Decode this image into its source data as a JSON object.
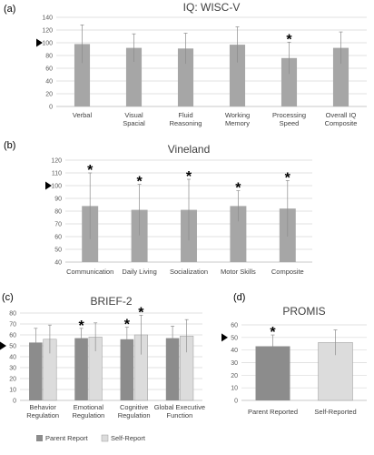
{
  "panels": [
    {
      "id": "a",
      "panel_label": "(a)",
      "reference_marker": "▶",
      "chart_data": {
        "type": "bar",
        "title": "IQ: WISC-V",
        "categories": [
          "Verbal",
          "Visual Spacial",
          "Fluid Reasoning",
          "Working Memory",
          "Processing Speed",
          "Overall IQ Composite"
        ],
        "category_lines": [
          [
            "Verbal"
          ],
          [
            "Visual",
            "Spacial"
          ],
          [
            "Fluid",
            "Reasoning"
          ],
          [
            "Working",
            "Memory"
          ],
          [
            "Processing",
            "Speed"
          ],
          [
            "Overall IQ",
            "Composite"
          ]
        ],
        "series": [
          {
            "values": [
              98,
              92,
              91,
              97,
              76,
              92
            ],
            "errors": [
              30,
              22,
              24,
              28,
              25,
              25
            ],
            "significant": [
              false,
              false,
              false,
              false,
              true,
              false
            ],
            "color": "#a6a6a6"
          }
        ],
        "ylim": [
          0,
          140
        ],
        "ytick_step": 20,
        "reference_value": 100,
        "grid": true,
        "significance_marker": "*"
      }
    },
    {
      "id": "b",
      "panel_label": "(b)",
      "reference_marker": "▶",
      "chart_data": {
        "type": "bar",
        "title": "Vineland",
        "categories": [
          "Communication",
          "Daily Living",
          "Socialization",
          "Motor Skills",
          "Composite"
        ],
        "category_lines": [
          [
            "Communication"
          ],
          [
            "Daily Living"
          ],
          [
            "Socialization"
          ],
          [
            "Motor Skills"
          ],
          [
            "Composite"
          ]
        ],
        "series": [
          {
            "values": [
              84,
              81,
              81,
              84,
              82
            ],
            "errors": [
              26,
              20,
              24,
              12,
              22
            ],
            "significant": [
              true,
              true,
              true,
              true,
              true
            ],
            "color": "#a6a6a6"
          }
        ],
        "ylim": [
          40,
          120
        ],
        "ytick_step": 10,
        "reference_value": 100,
        "grid": true,
        "significance_marker": "*"
      }
    },
    {
      "id": "c",
      "panel_label": "(c)",
      "reference_marker": "▶",
      "chart_data": {
        "type": "bar",
        "title": "BRIEF-2",
        "categories": [
          "Behavior Regulation",
          "Emotional Regulation",
          "Cognitive Regulation",
          "Global Executive Function"
        ],
        "category_lines": [
          [
            "Behavior",
            "Regulation"
          ],
          [
            "Emotional",
            "Regulation"
          ],
          [
            "Cognitive",
            "Regulation"
          ],
          [
            "Global Executive",
            "Function"
          ]
        ],
        "series": [
          {
            "name": "Parent Report",
            "values": [
              53,
              57,
              56,
              57
            ],
            "errors": [
              13,
              9,
              11,
              11
            ],
            "significant": [
              false,
              true,
              true,
              false
            ],
            "color": "#8c8c8c"
          },
          {
            "name": "Self-Report",
            "values": [
              56,
              58,
              60,
              59
            ],
            "errors": [
              13,
              13,
              18,
              15
            ],
            "significant": [
              false,
              false,
              true,
              false
            ],
            "color": "#dcdcdc"
          }
        ],
        "ylim": [
          0,
          80
        ],
        "ytick_step": 10,
        "reference_value": 50,
        "grid": true,
        "legend_position": "bottom",
        "significance_marker": "*"
      }
    },
    {
      "id": "d",
      "panel_label": "(d)",
      "reference_marker": "▶",
      "chart_data": {
        "type": "bar",
        "title": "PROMIS",
        "categories": [
          "Parent Reported",
          "Self-Reported"
        ],
        "category_lines": [
          [
            "Parent Reported"
          ],
          [
            "Self-Reported"
          ]
        ],
        "series": [
          {
            "values": [
              43,
              46
            ],
            "errors": [
              9,
              10
            ],
            "significant": [
              true,
              false
            ],
            "colors": [
              "#8c8c8c",
              "#dcdcdc"
            ]
          }
        ],
        "ylim": [
          0,
          60
        ],
        "ytick_step": 10,
        "reference_value": 50,
        "grid": true,
        "significance_marker": "*"
      }
    }
  ]
}
